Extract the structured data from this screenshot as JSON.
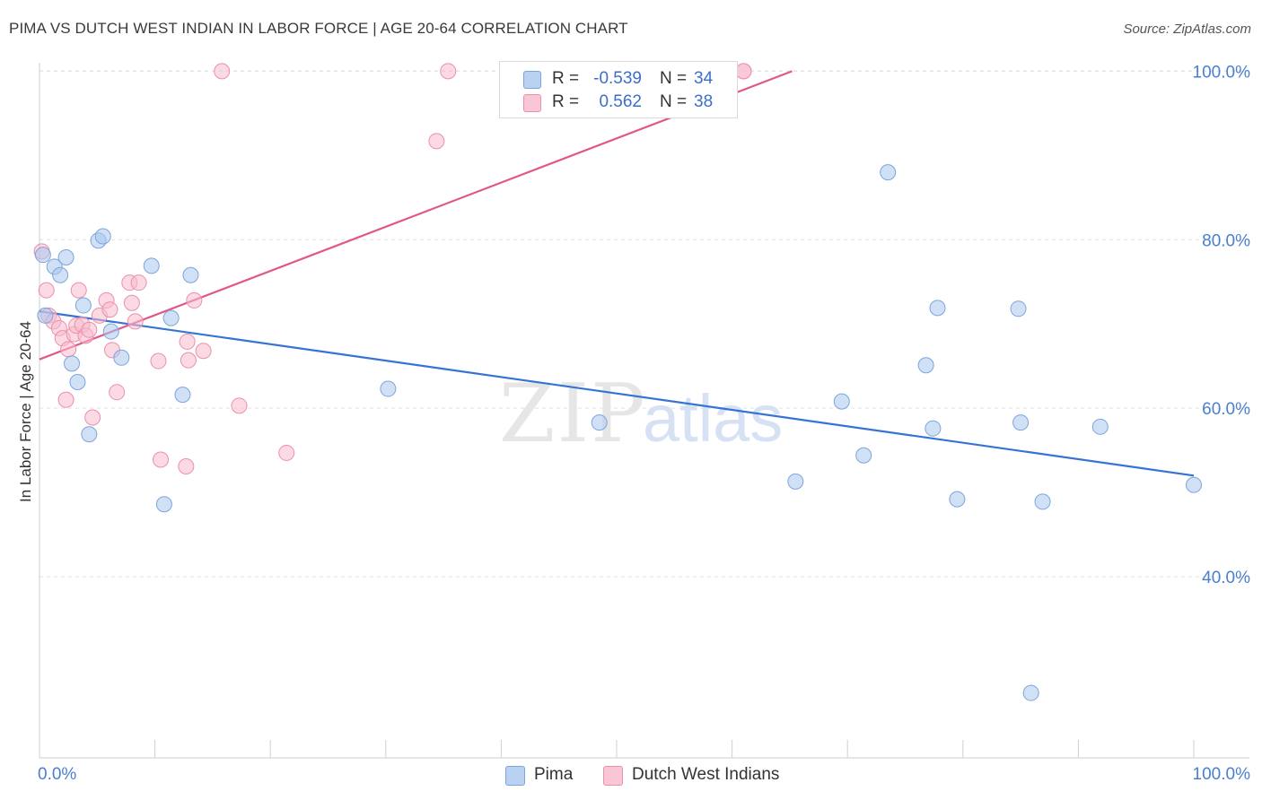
{
  "header": {
    "title": "PIMA VS DUTCH WEST INDIAN IN LABOR FORCE | AGE 20-64 CORRELATION CHART",
    "source": "Source: ZipAtlas.com"
  },
  "watermark": {
    "zip": "ZIP",
    "atlas": "atlas"
  },
  "legend": {
    "rows": [
      {
        "r_label": "R =",
        "r_value": "-0.539",
        "n_label": "N =",
        "n_value": "34",
        "color": "#b9d2f2",
        "border": "#7ea4dc"
      },
      {
        "r_label": "R =",
        "r_value": "0.562",
        "n_label": "N =",
        "n_value": "38",
        "color": "#f9c6d5",
        "border": "#ec8fac"
      }
    ]
  },
  "bottom_legend": [
    {
      "label": "Pima",
      "color": "#b9d2f2",
      "border": "#7ea4dc"
    },
    {
      "label": "Dutch West Indians",
      "color": "#f9c6d5",
      "border": "#ec8fac"
    }
  ],
  "chart_data": {
    "type": "scatter",
    "title": "PIMA VS DUTCH WEST INDIAN IN LABOR FORCE | AGE 20-64 CORRELATION CHART",
    "xlabel": "",
    "ylabel": "In Labor Force | Age 20-64",
    "xlim": [
      0,
      100
    ],
    "ylim": [
      18.5,
      101
    ],
    "x_tick_labels": [
      "0.0%",
      "100.0%"
    ],
    "y_ticks": [
      40,
      60,
      80,
      100
    ],
    "y_tick_labels": [
      "40.0%",
      "60.0%",
      "80.0%",
      "100.0%"
    ],
    "grid": true,
    "legend_position": "top-center",
    "series": [
      {
        "name": "Pima",
        "color": "#aac8ef",
        "line_color": "#3474d4",
        "trend": {
          "x": [
            0,
            100
          ],
          "y": [
            71.5,
            52.0
          ]
        },
        "points": [
          [
            0.3,
            78.2
          ],
          [
            0.5,
            71.0
          ],
          [
            1.3,
            76.8
          ],
          [
            1.8,
            75.8
          ],
          [
            2.3,
            77.9
          ],
          [
            2.8,
            65.3
          ],
          [
            3.3,
            63.1
          ],
          [
            3.8,
            72.2
          ],
          [
            4.3,
            56.9
          ],
          [
            5.1,
            79.9
          ],
          [
            5.5,
            80.4
          ],
          [
            6.2,
            69.1
          ],
          [
            7.1,
            66.0
          ],
          [
            9.7,
            76.9
          ],
          [
            10.8,
            48.6
          ],
          [
            11.4,
            70.7
          ],
          [
            12.4,
            61.6
          ],
          [
            13.1,
            75.8
          ],
          [
            30.2,
            62.3
          ],
          [
            48.5,
            58.3
          ],
          [
            65.5,
            51.3
          ],
          [
            69.5,
            60.8
          ],
          [
            71.4,
            54.4
          ],
          [
            73.5,
            88.0
          ],
          [
            76.8,
            65.1
          ],
          [
            77.4,
            57.6
          ],
          [
            77.8,
            71.9
          ],
          [
            79.5,
            49.2
          ],
          [
            84.8,
            71.8
          ],
          [
            85.0,
            58.3
          ],
          [
            85.9,
            26.2
          ],
          [
            86.9,
            48.9
          ],
          [
            91.9,
            57.8
          ],
          [
            100.0,
            50.9
          ]
        ]
      },
      {
        "name": "Dutch West Indians",
        "color": "#f7bccd",
        "line_color": "#e0578a",
        "trend": {
          "x": [
            0,
            65.2
          ],
          "y": [
            65.8,
            100.0
          ]
        },
        "points": [
          [
            0.2,
            78.6
          ],
          [
            0.6,
            74.0
          ],
          [
            0.8,
            71.0
          ],
          [
            1.2,
            70.3
          ],
          [
            1.7,
            69.5
          ],
          [
            2.0,
            68.3
          ],
          [
            2.3,
            61.0
          ],
          [
            2.5,
            67.0
          ],
          [
            3.0,
            68.8
          ],
          [
            3.2,
            69.8
          ],
          [
            3.4,
            74.0
          ],
          [
            3.7,
            69.9
          ],
          [
            4.0,
            68.6
          ],
          [
            4.3,
            69.3
          ],
          [
            4.6,
            58.9
          ],
          [
            5.2,
            71.0
          ],
          [
            5.8,
            72.8
          ],
          [
            6.1,
            71.7
          ],
          [
            6.3,
            66.9
          ],
          [
            6.7,
            61.9
          ],
          [
            7.8,
            74.9
          ],
          [
            8.0,
            72.5
          ],
          [
            8.3,
            70.3
          ],
          [
            8.6,
            74.9
          ],
          [
            10.3,
            65.6
          ],
          [
            10.5,
            53.9
          ],
          [
            12.7,
            53.1
          ],
          [
            12.8,
            67.9
          ],
          [
            12.9,
            65.7
          ],
          [
            13.4,
            72.8
          ],
          [
            14.2,
            66.8
          ],
          [
            15.8,
            100.0
          ],
          [
            17.3,
            60.3
          ],
          [
            21.4,
            54.7
          ],
          [
            34.4,
            91.7
          ],
          [
            35.4,
            100.0
          ],
          [
            61.0,
            100.0
          ],
          [
            61.0,
            100.0
          ]
        ]
      }
    ]
  }
}
